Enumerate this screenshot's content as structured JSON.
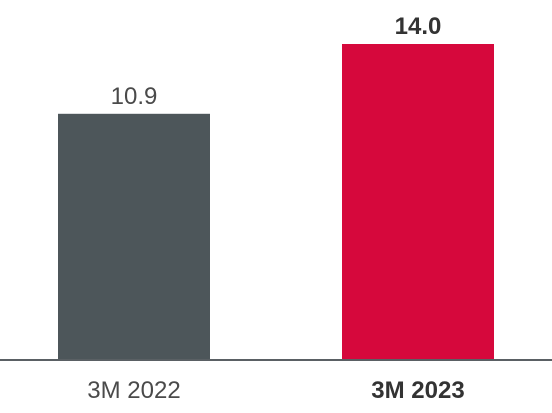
{
  "chart_data": {
    "type": "bar",
    "categories": [
      "3M 2022",
      "3M 2023"
    ],
    "values": [
      10.9,
      14.0
    ],
    "value_labels": [
      "10.9",
      "14.0"
    ],
    "emphasized": [
      false,
      true
    ],
    "colors": [
      "#4d565a",
      "#d6083c"
    ],
    "axis_color": "#5a6064",
    "ylim": [
      0,
      14.0
    ],
    "grid": false,
    "title": "",
    "xlabel": "",
    "ylabel": ""
  }
}
